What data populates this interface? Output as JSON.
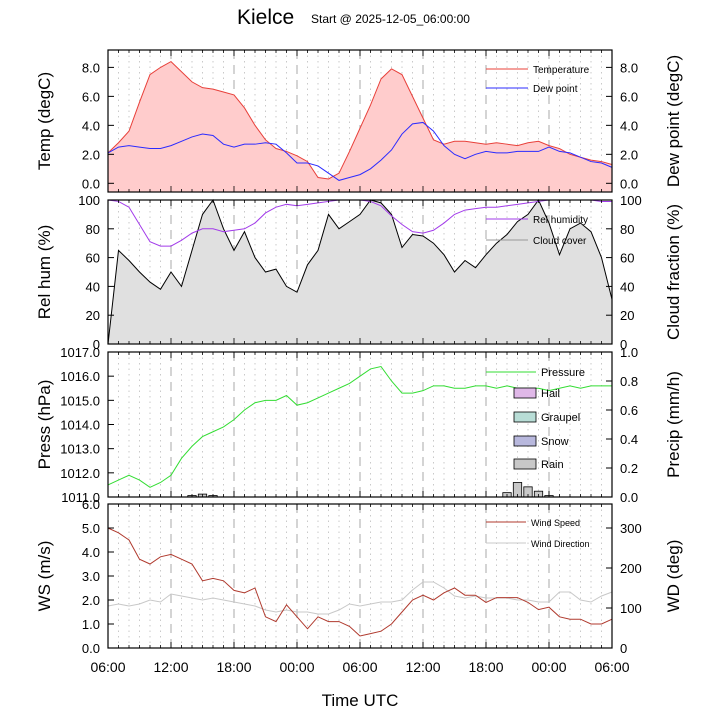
{
  "header": {
    "title": "Kielce",
    "subtitle": "Start @ 2025-12-05_06:00:00"
  },
  "colors": {
    "temperature": "#e8403a",
    "temperature_fill": "#ffcccc",
    "dewpoint": "#2b2bff",
    "humidity": "#a23bea",
    "cloud_line": "#000000",
    "cloud_fill": "#e0e0e0",
    "pressure": "#33dd33",
    "rain": "#c8c8c8",
    "hail": "#e0b8e8",
    "graupel": "#b8ddd6",
    "snow": "#b8b8dd",
    "wind_speed": "#b03a2e",
    "wind_direction": "#c8c8c8"
  },
  "chart_data": [
    {
      "type": "area",
      "panel": "temperature",
      "ylabel_left": "Temp (degC)",
      "ylabel_right": "Dew point (degC)",
      "ylim": [
        -0.6,
        9.2
      ],
      "yticks": [
        "0.0",
        "2.0",
        "4.0",
        "6.0",
        "8.0"
      ],
      "x_hours": [
        0,
        1,
        2,
        3,
        4,
        5,
        6,
        7,
        8,
        9,
        10,
        11,
        12,
        13,
        14,
        15,
        16,
        17,
        18,
        19,
        20,
        21,
        22,
        23,
        24,
        25,
        26,
        27,
        28,
        29,
        30,
        31,
        32,
        33,
        34,
        35,
        36,
        37,
        38,
        39,
        40,
        41,
        42,
        43,
        44,
        45,
        46,
        47,
        48
      ],
      "series": [
        {
          "name": "Temperature",
          "values": [
            2.1,
            2.8,
            3.6,
            5.6,
            7.5,
            8.0,
            8.4,
            7.7,
            7.0,
            6.6,
            6.5,
            6.3,
            6.1,
            5.2,
            4.0,
            3.0,
            2.4,
            2.2,
            1.9,
            1.5,
            0.4,
            0.3,
            0.7,
            2.2,
            3.8,
            5.4,
            7.2,
            7.9,
            7.5,
            6.0,
            4.5,
            3.0,
            2.7,
            2.9,
            2.9,
            2.8,
            2.7,
            2.8,
            2.7,
            2.6,
            2.8,
            2.9,
            2.6,
            2.4,
            2.0,
            1.8,
            1.6,
            1.5,
            1.3
          ]
        },
        {
          "name": "Dew point",
          "values": [
            2.1,
            2.5,
            2.6,
            2.5,
            2.4,
            2.4,
            2.6,
            2.9,
            3.2,
            3.4,
            3.3,
            2.7,
            2.5,
            2.7,
            2.7,
            2.8,
            2.7,
            2.1,
            1.4,
            1.4,
            1.2,
            0.7,
            0.2,
            0.4,
            0.6,
            1.0,
            1.6,
            2.3,
            3.4,
            4.1,
            4.2,
            3.6,
            2.6,
            2.0,
            1.7,
            2.0,
            2.2,
            2.1,
            2.1,
            2.2,
            2.2,
            2.2,
            2.5,
            2.2,
            2.1,
            1.8,
            1.5,
            1.4,
            1.1
          ]
        }
      ]
    },
    {
      "type": "area",
      "panel": "humidity_cloud",
      "ylabel_left": "Rel hum (%)",
      "ylabel_right": "Cloud fraction (%)",
      "ylim": [
        0,
        100
      ],
      "yticks": [
        "0",
        "20",
        "40",
        "60",
        "80",
        "100"
      ],
      "x_hours": [
        0,
        1,
        2,
        3,
        4,
        5,
        6,
        7,
        8,
        9,
        10,
        11,
        12,
        13,
        14,
        15,
        16,
        17,
        18,
        19,
        20,
        21,
        22,
        23,
        24,
        25,
        26,
        27,
        28,
        29,
        30,
        31,
        32,
        33,
        34,
        35,
        36,
        37,
        38,
        39,
        40,
        41,
        42,
        43,
        44,
        45,
        46,
        47,
        48
      ],
      "series": [
        {
          "name": "Rel humidity",
          "values": [
            100,
            99,
            95,
            83,
            71,
            68,
            68,
            72,
            77,
            80,
            80,
            78,
            79,
            80,
            84,
            91,
            95,
            97,
            96,
            97,
            98,
            99,
            100,
            100,
            100,
            99,
            96,
            89,
            83,
            78,
            77,
            79,
            84,
            90,
            93,
            94,
            95,
            95,
            96,
            97,
            98,
            99,
            100,
            100,
            100,
            100,
            100,
            99,
            99
          ]
        },
        {
          "name": "Cloud cover",
          "values": [
            0,
            65,
            58,
            50,
            43,
            38,
            50,
            40,
            65,
            90,
            100,
            80,
            65,
            78,
            60,
            50,
            52,
            40,
            36,
            55,
            65,
            90,
            80,
            85,
            90,
            100,
            98,
            90,
            67,
            76,
            75,
            70,
            62,
            50,
            58,
            53,
            62,
            70,
            76,
            85,
            90,
            100,
            84,
            62,
            80,
            84,
            78,
            60,
            31
          ]
        }
      ]
    },
    {
      "type": "line",
      "panel": "pressure_precip",
      "ylabel_left": "Press (hPa)",
      "ylabel_right": "Precip (mm/h)",
      "ylim_left": [
        1011.0,
        1017.0
      ],
      "ylim_right": [
        0.0,
        1.0
      ],
      "yticks_left": [
        "1011.0",
        "1012.0",
        "1013.0",
        "1014.0",
        "1015.0",
        "1016.0",
        "1017.0"
      ],
      "yticks_right": [
        "0.0",
        "0.2",
        "0.4",
        "0.6",
        "0.8",
        "1.0"
      ],
      "x_hours": [
        0,
        1,
        2,
        3,
        4,
        5,
        6,
        7,
        8,
        9,
        10,
        11,
        12,
        13,
        14,
        15,
        16,
        17,
        18,
        19,
        20,
        21,
        22,
        23,
        24,
        25,
        26,
        27,
        28,
        29,
        30,
        31,
        32,
        33,
        34,
        35,
        36,
        37,
        38,
        39,
        40,
        41,
        42,
        43,
        44,
        45,
        46,
        47,
        48
      ],
      "series": [
        {
          "name": "Pressure",
          "values": [
            1011.5,
            1011.7,
            1011.9,
            1011.7,
            1011.4,
            1011.6,
            1011.9,
            1012.6,
            1013.1,
            1013.5,
            1013.7,
            1013.9,
            1014.2,
            1014.6,
            1014.9,
            1015.0,
            1015.0,
            1015.2,
            1014.8,
            1014.9,
            1015.1,
            1015.3,
            1015.5,
            1015.7,
            1016.0,
            1016.3,
            1016.4,
            1015.8,
            1015.3,
            1015.3,
            1015.4,
            1015.6,
            1015.6,
            1015.5,
            1015.5,
            1015.6,
            1015.6,
            1015.5,
            1015.6,
            1015.5,
            1015.5,
            1015.5,
            1015.4,
            1015.5,
            1015.6,
            1015.5,
            1015.6,
            1015.6,
            1015.6
          ]
        },
        {
          "name": "Rain",
          "bars": [
            {
              "hour": 8,
              "value": 0.01
            },
            {
              "hour": 9,
              "value": 0.02
            },
            {
              "hour": 10,
              "value": 0.01
            },
            {
              "hour": 38,
              "value": 0.03
            },
            {
              "hour": 39,
              "value": 0.1
            },
            {
              "hour": 40,
              "value": 0.07
            },
            {
              "hour": 41,
              "value": 0.04
            },
            {
              "hour": 42,
              "value": 0.01
            }
          ]
        }
      ],
      "legend": [
        "Pressure",
        "Hail",
        "Graupel",
        "Snow",
        "Rain"
      ]
    },
    {
      "type": "line",
      "panel": "wind",
      "ylabel_left": "WS (m/s)",
      "ylabel_right": "WD (deg)",
      "ylim_left": [
        0.0,
        6.0
      ],
      "ylim_right": [
        0,
        360
      ],
      "yticks_left": [
        "0.0",
        "1.0",
        "2.0",
        "3.0",
        "4.0",
        "5.0",
        "6.0"
      ],
      "yticks_right": [
        "0",
        "100",
        "200",
        "300"
      ],
      "x_hours": [
        0,
        1,
        2,
        3,
        4,
        5,
        6,
        7,
        8,
        9,
        10,
        11,
        12,
        13,
        14,
        15,
        16,
        17,
        18,
        19,
        20,
        21,
        22,
        23,
        24,
        25,
        26,
        27,
        28,
        29,
        30,
        31,
        32,
        33,
        34,
        35,
        36,
        37,
        38,
        39,
        40,
        41,
        42,
        43,
        44,
        45,
        46,
        47,
        48
      ],
      "series": [
        {
          "name": "Wind Speed",
          "values": [
            5.0,
            4.8,
            4.5,
            3.7,
            3.5,
            3.8,
            3.9,
            3.7,
            3.5,
            2.8,
            2.9,
            2.8,
            2.4,
            2.3,
            2.5,
            1.3,
            1.1,
            1.8,
            1.3,
            0.8,
            1.3,
            1.1,
            1.1,
            0.9,
            0.5,
            0.6,
            0.7,
            1.0,
            1.5,
            2.0,
            2.2,
            2.0,
            2.3,
            2.5,
            2.2,
            2.2,
            1.9,
            2.1,
            2.1,
            2.1,
            1.9,
            1.6,
            1.7,
            1.3,
            1.2,
            1.2,
            1.0,
            1.0,
            1.2
          ]
        },
        {
          "name": "Wind Direction",
          "values": [
            105,
            110,
            105,
            110,
            120,
            115,
            135,
            130,
            125,
            120,
            125,
            120,
            115,
            110,
            105,
            95,
            90,
            95,
            90,
            90,
            85,
            85,
            95,
            110,
            105,
            110,
            115,
            115,
            120,
            145,
            165,
            165,
            150,
            130,
            125,
            130,
            125,
            125,
            125,
            120,
            120,
            115,
            115,
            140,
            140,
            120,
            115,
            130,
            140
          ]
        }
      ]
    }
  ],
  "xaxis": {
    "label": "Time UTC",
    "ticks": [
      "06:00",
      "12:00",
      "18:00",
      "00:00",
      "06:00",
      "12:00",
      "18:00",
      "00:00",
      "06:00"
    ]
  }
}
